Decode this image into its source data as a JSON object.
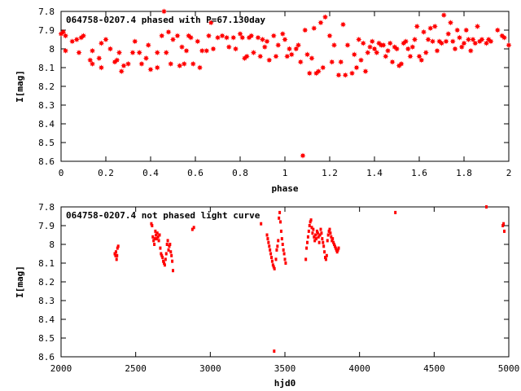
{
  "chart_data": [
    {
      "type": "scatter",
      "title": "064758-0207.4 phased with P=67.130day",
      "xlabel": "phase",
      "ylabel": "I[mag]",
      "xlim": [
        0,
        2
      ],
      "ylim": [
        8.6,
        7.8
      ],
      "y_inverted": true,
      "grid": false,
      "marker": "star",
      "color": "#ff0000",
      "xticks": [
        "0",
        "0.2",
        "0.4",
        "0.6",
        "0.8",
        "1",
        "1.2",
        "1.4",
        "1.6",
        "1.8",
        "2"
      ],
      "yticks": [
        "7.8",
        "7.9",
        "8",
        "8.1",
        "8.2",
        "8.3",
        "8.4",
        "8.5",
        "8.6"
      ],
      "points": [
        [
          0.0,
          7.92
        ],
        [
          0.01,
          7.91
        ],
        [
          0.02,
          7.93
        ],
        [
          0.02,
          8.01
        ],
        [
          0.05,
          7.96
        ],
        [
          0.07,
          7.95
        ],
        [
          0.08,
          8.02
        ],
        [
          0.09,
          7.94
        ],
        [
          0.1,
          7.93
        ],
        [
          0.13,
          8.06
        ],
        [
          0.14,
          8.01
        ],
        [
          0.14,
          8.08
        ],
        [
          0.17,
          8.05
        ],
        [
          0.18,
          8.1
        ],
        [
          0.18,
          7.97
        ],
        [
          0.2,
          7.95
        ],
        [
          0.22,
          8.0
        ],
        [
          0.24,
          8.07
        ],
        [
          0.25,
          8.06
        ],
        [
          0.26,
          8.02
        ],
        [
          0.27,
          8.12
        ],
        [
          0.28,
          8.09
        ],
        [
          0.3,
          8.08
        ],
        [
          0.32,
          8.02
        ],
        [
          0.33,
          7.96
        ],
        [
          0.35,
          8.02
        ],
        [
          0.36,
          8.08
        ],
        [
          0.38,
          8.05
        ],
        [
          0.39,
          7.98
        ],
        [
          0.4,
          8.11
        ],
        [
          0.43,
          8.1
        ],
        [
          0.43,
          8.02
        ],
        [
          0.45,
          7.93
        ],
        [
          0.46,
          7.8
        ],
        [
          0.47,
          8.02
        ],
        [
          0.48,
          7.91
        ],
        [
          0.49,
          8.08
        ],
        [
          0.5,
          7.95
        ],
        [
          0.52,
          7.93
        ],
        [
          0.53,
          8.09
        ],
        [
          0.54,
          7.99
        ],
        [
          0.55,
          8.08
        ],
        [
          0.56,
          8.01
        ],
        [
          0.57,
          7.93
        ],
        [
          0.58,
          7.94
        ],
        [
          0.59,
          8.08
        ],
        [
          0.61,
          7.96
        ],
        [
          0.62,
          8.1
        ],
        [
          0.63,
          8.01
        ],
        [
          0.65,
          8.01
        ],
        [
          0.66,
          7.93
        ],
        [
          0.67,
          7.86
        ],
        [
          0.68,
          8.0
        ],
        [
          0.7,
          7.94
        ],
        [
          0.72,
          7.93
        ],
        [
          0.74,
          7.94
        ],
        [
          0.75,
          7.99
        ],
        [
          0.77,
          7.94
        ],
        [
          0.78,
          8.0
        ],
        [
          0.8,
          7.92
        ],
        [
          0.81,
          7.94
        ],
        [
          0.82,
          8.05
        ],
        [
          0.83,
          8.04
        ],
        [
          0.84,
          7.94
        ],
        [
          0.85,
          7.93
        ],
        [
          0.86,
          8.02
        ],
        [
          0.88,
          7.94
        ],
        [
          0.89,
          8.04
        ],
        [
          0.9,
          7.95
        ],
        [
          0.91,
          7.99
        ],
        [
          0.92,
          7.96
        ],
        [
          0.93,
          8.06
        ],
        [
          0.95,
          7.93
        ],
        [
          0.96,
          8.04
        ],
        [
          0.97,
          7.98
        ],
        [
          0.99,
          7.92
        ],
        [
          1.0,
          7.95
        ],
        [
          1.01,
          8.04
        ],
        [
          1.02,
          8.0
        ],
        [
          1.03,
          8.03
        ],
        [
          1.05,
          8.0
        ],
        [
          1.06,
          7.98
        ],
        [
          1.07,
          8.07
        ],
        [
          1.08,
          8.57
        ],
        [
          1.09,
          7.9
        ],
        [
          1.1,
          8.03
        ],
        [
          1.11,
          8.13
        ],
        [
          1.12,
          8.05
        ],
        [
          1.13,
          7.89
        ],
        [
          1.14,
          8.13
        ],
        [
          1.15,
          8.12
        ],
        [
          1.16,
          7.86
        ],
        [
          1.17,
          8.1
        ],
        [
          1.18,
          7.83
        ],
        [
          1.2,
          7.93
        ],
        [
          1.21,
          8.07
        ],
        [
          1.22,
          7.98
        ],
        [
          1.24,
          8.14
        ],
        [
          1.25,
          8.07
        ],
        [
          1.26,
          7.87
        ],
        [
          1.27,
          8.14
        ],
        [
          1.28,
          7.98
        ],
        [
          1.3,
          8.13
        ],
        [
          1.31,
          8.03
        ],
        [
          1.32,
          8.1
        ],
        [
          1.33,
          7.95
        ],
        [
          1.34,
          8.06
        ],
        [
          1.35,
          7.97
        ],
        [
          1.36,
          8.12
        ],
        [
          1.37,
          8.02
        ],
        [
          1.38,
          7.99
        ],
        [
          1.39,
          7.96
        ],
        [
          1.4,
          8.0
        ],
        [
          1.41,
          8.02
        ],
        [
          1.42,
          7.97
        ],
        [
          1.43,
          7.98
        ],
        [
          1.44,
          7.98
        ],
        [
          1.45,
          8.04
        ],
        [
          1.46,
          8.01
        ],
        [
          1.47,
          7.97
        ],
        [
          1.48,
          8.07
        ],
        [
          1.49,
          7.99
        ],
        [
          1.5,
          8.0
        ],
        [
          1.51,
          8.09
        ],
        [
          1.52,
          8.08
        ],
        [
          1.53,
          7.97
        ],
        [
          1.54,
          7.96
        ],
        [
          1.55,
          8.0
        ],
        [
          1.56,
          8.04
        ],
        [
          1.57,
          7.99
        ],
        [
          1.58,
          7.95
        ],
        [
          1.59,
          7.88
        ],
        [
          1.6,
          8.04
        ],
        [
          1.61,
          8.06
        ],
        [
          1.62,
          7.91
        ],
        [
          1.63,
          8.02
        ],
        [
          1.64,
          7.95
        ],
        [
          1.65,
          7.89
        ],
        [
          1.66,
          7.96
        ],
        [
          1.67,
          7.88
        ],
        [
          1.68,
          8.01
        ],
        [
          1.69,
          7.96
        ],
        [
          1.7,
          7.97
        ],
        [
          1.71,
          7.82
        ],
        [
          1.72,
          7.96
        ],
        [
          1.73,
          7.92
        ],
        [
          1.74,
          7.86
        ],
        [
          1.75,
          7.96
        ],
        [
          1.76,
          8.0
        ],
        [
          1.77,
          7.9
        ],
        [
          1.78,
          7.94
        ],
        [
          1.79,
          7.99
        ],
        [
          1.8,
          7.97
        ],
        [
          1.81,
          7.9
        ],
        [
          1.82,
          7.95
        ],
        [
          1.83,
          8.01
        ],
        [
          1.84,
          7.95
        ],
        [
          1.85,
          7.97
        ],
        [
          1.86,
          7.88
        ],
        [
          1.87,
          7.96
        ],
        [
          1.88,
          7.95
        ],
        [
          1.9,
          7.97
        ],
        [
          1.91,
          7.95
        ],
        [
          1.92,
          7.96
        ],
        [
          1.95,
          7.9
        ],
        [
          1.97,
          7.93
        ],
        [
          1.98,
          7.94
        ],
        [
          2.0,
          7.98
        ]
      ]
    },
    {
      "type": "scatter",
      "title": "064758-0207.4 not phased light curve",
      "xlabel": "hjd0",
      "ylabel": "I[mag]",
      "xlim": [
        2000,
        5000
      ],
      "ylim": [
        8.6,
        7.8
      ],
      "y_inverted": true,
      "grid": false,
      "marker": "dot",
      "color": "#ff0000",
      "xticks": [
        "2000",
        "2500",
        "3000",
        "3500",
        "4000",
        "4500",
        "5000"
      ],
      "yticks": [
        "7.8",
        "7.9",
        "8",
        "8.1",
        "8.2",
        "8.3",
        "8.4",
        "8.5",
        "8.6"
      ],
      "points": [
        [
          2360,
          8.05
        ],
        [
          2365,
          8.06
        ],
        [
          2368,
          8.04
        ],
        [
          2372,
          8.08
        ],
        [
          2375,
          8.06
        ],
        [
          2378,
          8.02
        ],
        [
          2383,
          8.01
        ],
        [
          2605,
          7.89
        ],
        [
          2610,
          7.9
        ],
        [
          2615,
          7.96
        ],
        [
          2620,
          7.98
        ],
        [
          2625,
          8.0
        ],
        [
          2628,
          7.97
        ],
        [
          2632,
          7.93
        ],
        [
          2636,
          7.95
        ],
        [
          2640,
          7.97
        ],
        [
          2645,
          7.94
        ],
        [
          2650,
          7.96
        ],
        [
          2655,
          7.98
        ],
        [
          2660,
          7.95
        ],
        [
          2665,
          8.02
        ],
        [
          2670,
          8.05
        ],
        [
          2675,
          8.06
        ],
        [
          2680,
          8.07
        ],
        [
          2685,
          8.09
        ],
        [
          2690,
          8.1
        ],
        [
          2695,
          8.11
        ],
        [
          2700,
          8.08
        ],
        [
          2705,
          8.05
        ],
        [
          2710,
          8.0
        ],
        [
          2715,
          7.98
        ],
        [
          2720,
          8.03
        ],
        [
          2725,
          8.01
        ],
        [
          2730,
          8.0
        ],
        [
          2735,
          8.04
        ],
        [
          2740,
          8.06
        ],
        [
          2745,
          8.09
        ],
        [
          2750,
          8.14
        ],
        [
          2880,
          7.92
        ],
        [
          2890,
          7.91
        ],
        [
          3340,
          7.89
        ],
        [
          3380,
          7.95
        ],
        [
          3385,
          7.97
        ],
        [
          3390,
          7.99
        ],
        [
          3395,
          8.01
        ],
        [
          3400,
          8.03
        ],
        [
          3405,
          8.05
        ],
        [
          3410,
          8.07
        ],
        [
          3415,
          8.09
        ],
        [
          3420,
          8.11
        ],
        [
          3425,
          8.12
        ],
        [
          3430,
          8.13
        ],
        [
          3428,
          8.57
        ],
        [
          3440,
          8.08
        ],
        [
          3445,
          8.03
        ],
        [
          3450,
          8.01
        ],
        [
          3455,
          7.98
        ],
        [
          3460,
          7.86
        ],
        [
          3465,
          7.83
        ],
        [
          3470,
          7.88
        ],
        [
          3475,
          7.93
        ],
        [
          3480,
          7.97
        ],
        [
          3485,
          8.0
        ],
        [
          3490,
          8.03
        ],
        [
          3495,
          8.05
        ],
        [
          3500,
          8.08
        ],
        [
          3505,
          8.1
        ],
        [
          3640,
          8.08
        ],
        [
          3645,
          8.02
        ],
        [
          3650,
          7.99
        ],
        [
          3655,
          7.96
        ],
        [
          3660,
          7.93
        ],
        [
          3665,
          7.9
        ],
        [
          3670,
          7.88
        ],
        [
          3675,
          7.87
        ],
        [
          3680,
          7.91
        ],
        [
          3685,
          7.94
        ],
        [
          3690,
          7.92
        ],
        [
          3695,
          7.96
        ],
        [
          3700,
          7.98
        ],
        [
          3705,
          7.95
        ],
        [
          3710,
          7.97
        ],
        [
          3715,
          7.93
        ],
        [
          3720,
          7.94
        ],
        [
          3725,
          7.96
        ],
        [
          3730,
          7.99
        ],
        [
          3735,
          7.95
        ],
        [
          3740,
          7.92
        ],
        [
          3745,
          7.94
        ],
        [
          3750,
          7.97
        ],
        [
          3755,
          7.99
        ],
        [
          3760,
          8.01
        ],
        [
          3765,
          8.04
        ],
        [
          3770,
          8.07
        ],
        [
          3775,
          8.08
        ],
        [
          3780,
          8.06
        ],
        [
          3785,
          7.98
        ],
        [
          3790,
          7.95
        ],
        [
          3795,
          7.93
        ],
        [
          3800,
          7.92
        ],
        [
          3805,
          7.94
        ],
        [
          3810,
          7.96
        ],
        [
          3815,
          7.98
        ],
        [
          3820,
          7.97
        ],
        [
          3825,
          7.99
        ],
        [
          3830,
          8.0
        ],
        [
          3835,
          8.01
        ],
        [
          3840,
          8.02
        ],
        [
          3845,
          8.03
        ],
        [
          3850,
          8.04
        ],
        [
          3855,
          8.03
        ],
        [
          3860,
          8.02
        ],
        [
          4240,
          7.83
        ],
        [
          4850,
          7.8
        ],
        [
          4960,
          7.9
        ],
        [
          4965,
          7.89
        ],
        [
          4970,
          7.93
        ]
      ]
    }
  ]
}
